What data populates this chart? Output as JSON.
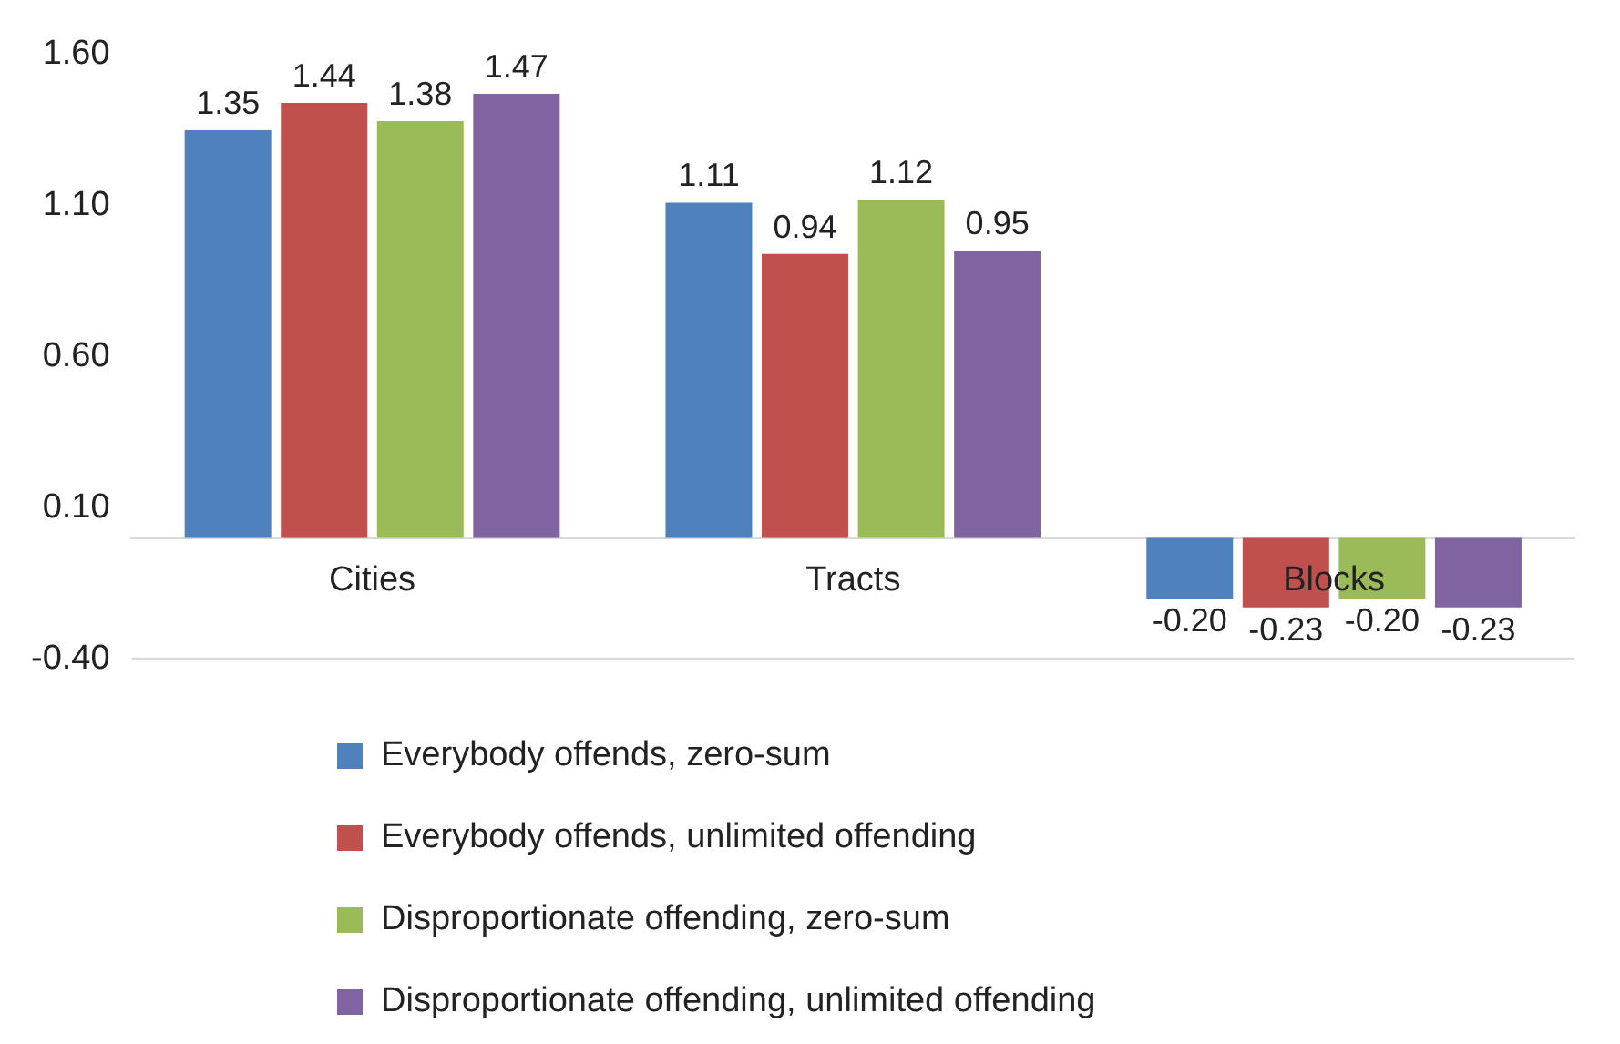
{
  "chart_data": {
    "type": "bar",
    "categories": [
      "Cities",
      "Tracts",
      "Blocks"
    ],
    "series": [
      {
        "name": "Everybody offends, zero-sum",
        "color": "#4f81bd",
        "values": [
          1.35,
          1.11,
          -0.2
        ],
        "value_labels": [
          "1.35",
          "1.11",
          "-0.20"
        ]
      },
      {
        "name": "Everybody offends, unlimited offending",
        "color": "#c0504d",
        "values": [
          1.44,
          0.94,
          -0.23
        ],
        "value_labels": [
          "1.44",
          "0.94",
          "-0.23"
        ]
      },
      {
        "name": "Disproportionate offending, zero-sum",
        "color": "#9bbb59",
        "values": [
          1.38,
          1.12,
          -0.2
        ],
        "value_labels": [
          "1.38",
          "1.12",
          "-0.20"
        ]
      },
      {
        "name": "Disproportionate offending, unlimited offending",
        "color": "#8064a2",
        "values": [
          1.47,
          0.95,
          -0.23
        ],
        "value_labels": [
          "1.47",
          "0.95",
          "-0.23"
        ]
      }
    ],
    "ylim": [
      -0.4,
      1.6
    ],
    "yticks": [
      {
        "value": 1.6,
        "label": "1.60"
      },
      {
        "value": 1.1,
        "label": "1.10"
      },
      {
        "value": 0.6,
        "label": "0.60"
      },
      {
        "value": 0.1,
        "label": "0.10"
      },
      {
        "value": -0.4,
        "label": "-0.40"
      }
    ],
    "ref_lines": [
      {
        "axis": "y",
        "value": -0.4,
        "color": "#d9d9d9"
      }
    ],
    "grid": false,
    "legend": "bottom"
  }
}
